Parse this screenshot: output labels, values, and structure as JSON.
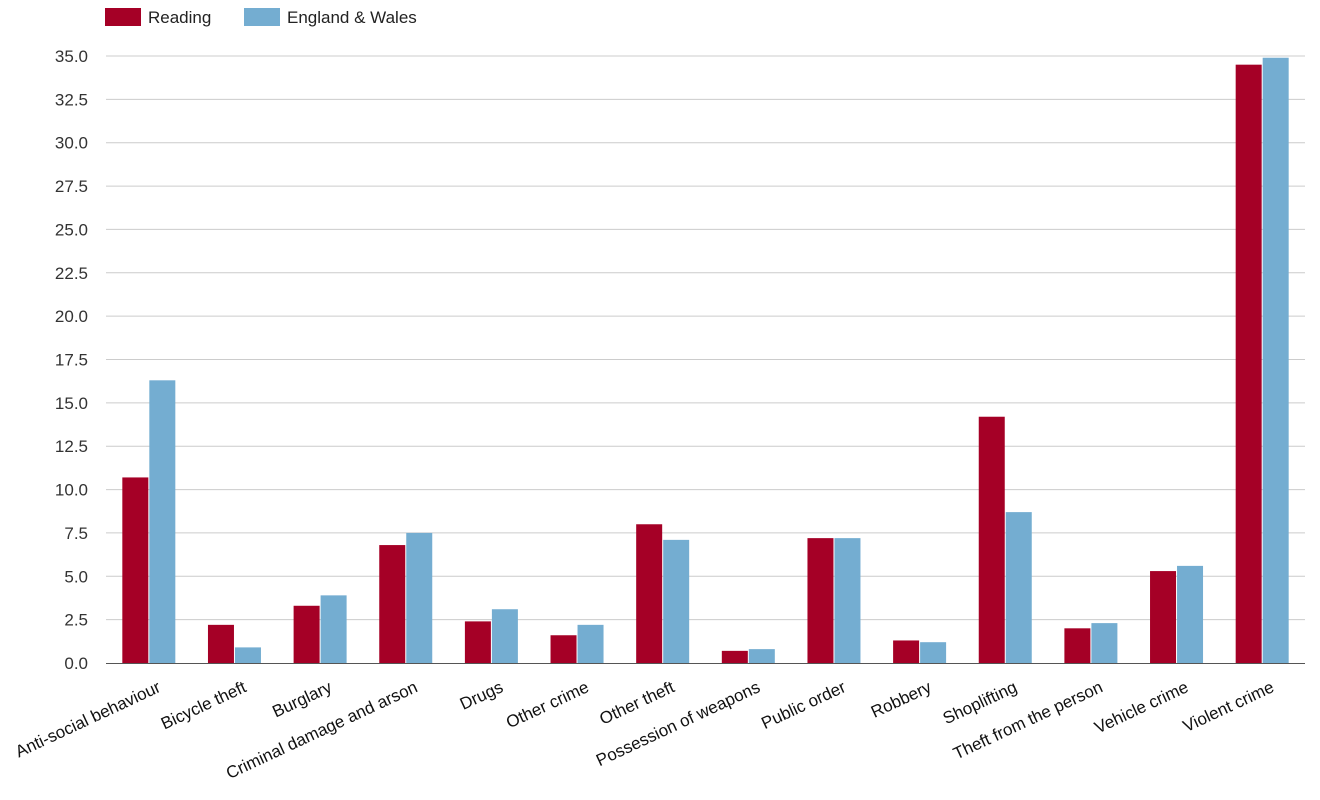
{
  "chart_data": {
    "type": "bar",
    "categories": [
      "Anti-social behaviour",
      "Bicycle theft",
      "Burglary",
      "Criminal damage and arson",
      "Drugs",
      "Other crime",
      "Other theft",
      "Possession of weapons",
      "Public order",
      "Robbery",
      "Shoplifting",
      "Theft from the person",
      "Vehicle crime",
      "Violent crime"
    ],
    "series": [
      {
        "name": "Reading",
        "color": "#a50026",
        "values": [
          10.7,
          2.2,
          3.3,
          6.8,
          2.4,
          1.6,
          8.0,
          0.7,
          7.2,
          1.3,
          14.2,
          2.0,
          5.3,
          34.5
        ]
      },
      {
        "name": "England & Wales",
        "color": "#74add1",
        "values": [
          16.3,
          0.9,
          3.9,
          7.5,
          3.1,
          2.2,
          7.1,
          0.8,
          7.2,
          1.2,
          8.7,
          2.3,
          5.6,
          34.9
        ]
      }
    ],
    "yticks": [
      "0.0",
      "2.5",
      "5.0",
      "7.5",
      "10.0",
      "12.5",
      "15.0",
      "17.5",
      "20.0",
      "22.5",
      "25.0",
      "27.5",
      "30.0",
      "32.5",
      "35.0"
    ],
    "ylim": [
      0,
      35
    ],
    "grid": true,
    "legend": "top-left",
    "title": "",
    "xlabel": "",
    "ylabel": ""
  }
}
